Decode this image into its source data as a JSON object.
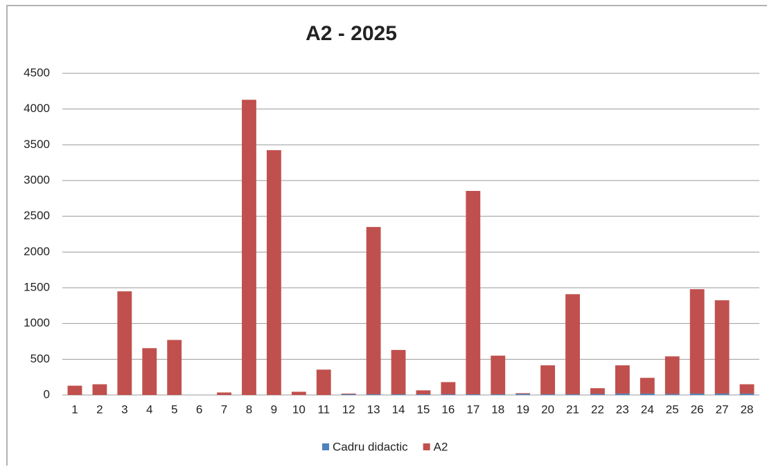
{
  "chart_data": {
    "type": "stacked_bar",
    "title": "A2 - 2025",
    "categories": [
      "1",
      "2",
      "3",
      "4",
      "5",
      "6",
      "7",
      "8",
      "9",
      "10",
      "11",
      "12",
      "13",
      "14",
      "15",
      "16",
      "17",
      "18",
      "19",
      "20",
      "21",
      "22",
      "23",
      "24",
      "25",
      "26",
      "27",
      "28"
    ],
    "series": [
      {
        "name": "Cadru didactic",
        "color": "#4f81bd",
        "values": [
          0,
          0,
          0,
          0,
          0,
          0,
          0,
          0,
          0,
          0,
          0,
          10,
          10,
          10,
          10,
          10,
          10,
          10,
          15,
          10,
          10,
          15,
          20,
          20,
          15,
          20,
          20,
          20
        ]
      },
      {
        "name": "A2",
        "color": "#c0504d",
        "values": [
          130,
          150,
          1450,
          655,
          770,
          0,
          35,
          4130,
          3425,
          45,
          355,
          10,
          2340,
          620,
          55,
          170,
          2845,
          540,
          10,
          405,
          1400,
          80,
          395,
          220,
          525,
          1460,
          1305,
          130
        ]
      }
    ],
    "ylim": [
      0,
      4500
    ],
    "yticks": [
      0,
      500,
      1000,
      1500,
      2000,
      2500,
      3000,
      3500,
      4000,
      4500
    ],
    "grid": true,
    "legend": "bottom"
  }
}
